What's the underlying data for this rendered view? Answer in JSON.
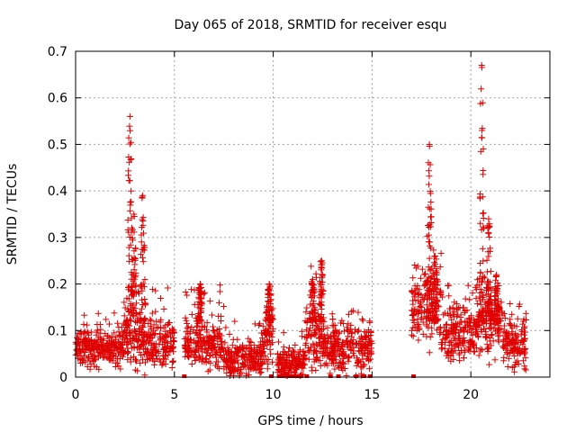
{
  "chart_data": {
    "type": "scatter",
    "title": "Day 065 of 2018, SRMTID for receiver esqu",
    "xlabel": "GPS time / hours",
    "ylabel": "SRMTID / TECUs",
    "xlim": [
      0,
      24
    ],
    "ylim": [
      0,
      0.7
    ],
    "grid": true,
    "marker": "+",
    "marker_color": "#e00000",
    "x_ticks": [
      0,
      5,
      10,
      15,
      20
    ],
    "x_tick_labels": [
      "0",
      "5",
      "10",
      "15",
      "20"
    ],
    "y_ticks": [
      0,
      0.1,
      0.2,
      0.3,
      0.4,
      0.5,
      0.6,
      0.7
    ],
    "y_tick_labels": [
      "0",
      "0.1",
      "0.2",
      "0.3",
      "0.4",
      "0.5",
      "0.6",
      "0.7"
    ],
    "series": [
      {
        "name": "SRMTID",
        "segments": [
          {
            "t_start": 0.0,
            "t_end": 2.4,
            "base": 0.06,
            "spread": 0.03,
            "spike_prob": 0.08,
            "spike_max": 0.14
          },
          {
            "t_start": 2.4,
            "t_end": 3.6,
            "base": 0.08,
            "spread": 0.05,
            "spike_prob": 0.12,
            "spike_max": 0.2
          },
          {
            "t_start": 3.6,
            "t_end": 5.0,
            "base": 0.07,
            "spread": 0.04,
            "spike_prob": 0.1,
            "spike_max": 0.2
          },
          {
            "t_start": 5.5,
            "t_end": 7.5,
            "base": 0.07,
            "spread": 0.04,
            "spike_prob": 0.1,
            "spike_max": 0.2
          },
          {
            "t_start": 7.5,
            "t_end": 9.5,
            "base": 0.04,
            "spread": 0.03,
            "spike_prob": 0.06,
            "spike_max": 0.12
          },
          {
            "t_start": 9.5,
            "t_end": 10.0,
            "base": 0.09,
            "spread": 0.05,
            "spike_prob": 0.1,
            "spike_max": 0.2
          },
          {
            "t_start": 10.2,
            "t_end": 11.6,
            "base": 0.03,
            "spread": 0.03,
            "spike_prob": 0.05,
            "spike_max": 0.1
          },
          {
            "t_start": 11.6,
            "t_end": 12.6,
            "base": 0.08,
            "spread": 0.05,
            "spike_prob": 0.12,
            "spike_max": 0.24
          },
          {
            "t_start": 12.6,
            "t_end": 15.0,
            "base": 0.06,
            "spread": 0.04,
            "spike_prob": 0.08,
            "spike_max": 0.15
          },
          {
            "t_start": 17.0,
            "t_end": 17.6,
            "base": 0.14,
            "spread": 0.05,
            "spike_prob": 0.1,
            "spike_max": 0.25
          },
          {
            "t_start": 17.6,
            "t_end": 18.5,
            "base": 0.17,
            "spread": 0.07,
            "spike_prob": 0.08,
            "spike_max": 0.28
          },
          {
            "t_start": 18.5,
            "t_end": 20.2,
            "base": 0.09,
            "spread": 0.05,
            "spike_prob": 0.1,
            "spike_max": 0.2
          },
          {
            "t_start": 20.2,
            "t_end": 21.6,
            "base": 0.12,
            "spread": 0.06,
            "spike_prob": 0.12,
            "spike_max": 0.22
          },
          {
            "t_start": 21.6,
            "t_end": 22.8,
            "base": 0.07,
            "spread": 0.04,
            "spike_prob": 0.08,
            "spike_max": 0.16
          }
        ],
        "peaks": [
          {
            "t": 2.75,
            "max": 0.56
          },
          {
            "t": 2.95,
            "max": 0.35
          },
          {
            "t": 3.4,
            "max": 0.39
          },
          {
            "t": 6.3,
            "max": 0.2
          },
          {
            "t": 9.8,
            "max": 0.2
          },
          {
            "t": 12.0,
            "max": 0.21
          },
          {
            "t": 12.45,
            "max": 0.25
          },
          {
            "t": 17.9,
            "max": 0.5
          },
          {
            "t": 18.2,
            "max": 0.26
          },
          {
            "t": 20.55,
            "max": 0.67
          },
          {
            "t": 20.9,
            "max": 0.34
          },
          {
            "t": 21.3,
            "max": 0.22
          }
        ],
        "zero_points_t": [
          5.5,
          9.9,
          10.3,
          10.5,
          10.8,
          11.0,
          11.2,
          11.4,
          11.7,
          12.9,
          13.3,
          14.2,
          14.6,
          14.9,
          17.1
        ]
      }
    ]
  }
}
